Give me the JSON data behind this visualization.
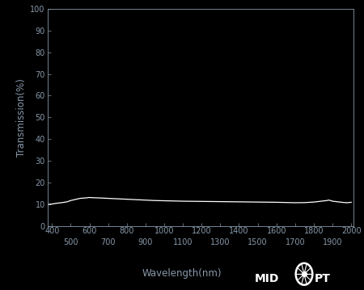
{
  "background_color": "#000000",
  "text_color": "#8899aa",
  "line_color": "#ffffff",
  "xlabel": "Wavelength(nm)",
  "ylabel": "Transmission(%)",
  "xlim": [
    375,
    2010
  ],
  "ylim": [
    0,
    100
  ],
  "yticks": [
    0,
    10,
    20,
    30,
    40,
    50,
    60,
    70,
    80,
    90,
    100
  ],
  "xticks_major": [
    400,
    600,
    800,
    1000,
    1200,
    1400,
    1600,
    1800,
    2000
  ],
  "xticks_minor": [
    500,
    700,
    900,
    1100,
    1300,
    1500,
    1700,
    1900
  ],
  "wavelengths": [
    375,
    400,
    420,
    450,
    480,
    500,
    520,
    550,
    580,
    600,
    620,
    650,
    700,
    750,
    800,
    850,
    900,
    950,
    1000,
    1100,
    1200,
    1300,
    1400,
    1500,
    1600,
    1700,
    1750,
    1800,
    1820,
    1840,
    1860,
    1870,
    1880,
    1890,
    1900,
    1920,
    1940,
    1960,
    1980,
    2000
  ],
  "transmission": [
    10.0,
    10.2,
    10.5,
    10.8,
    11.2,
    11.8,
    12.2,
    12.8,
    13.0,
    13.2,
    13.1,
    13.0,
    12.8,
    12.6,
    12.4,
    12.2,
    12.0,
    11.8,
    11.7,
    11.5,
    11.4,
    11.3,
    11.2,
    11.1,
    11.0,
    10.8,
    10.85,
    11.1,
    11.3,
    11.5,
    11.7,
    11.8,
    12.0,
    11.8,
    11.5,
    11.3,
    11.1,
    10.9,
    10.8,
    11.0
  ],
  "tick_label_fontsize": 7.0,
  "axis_label_fontsize": 8.5,
  "logo_fontsize": 10
}
